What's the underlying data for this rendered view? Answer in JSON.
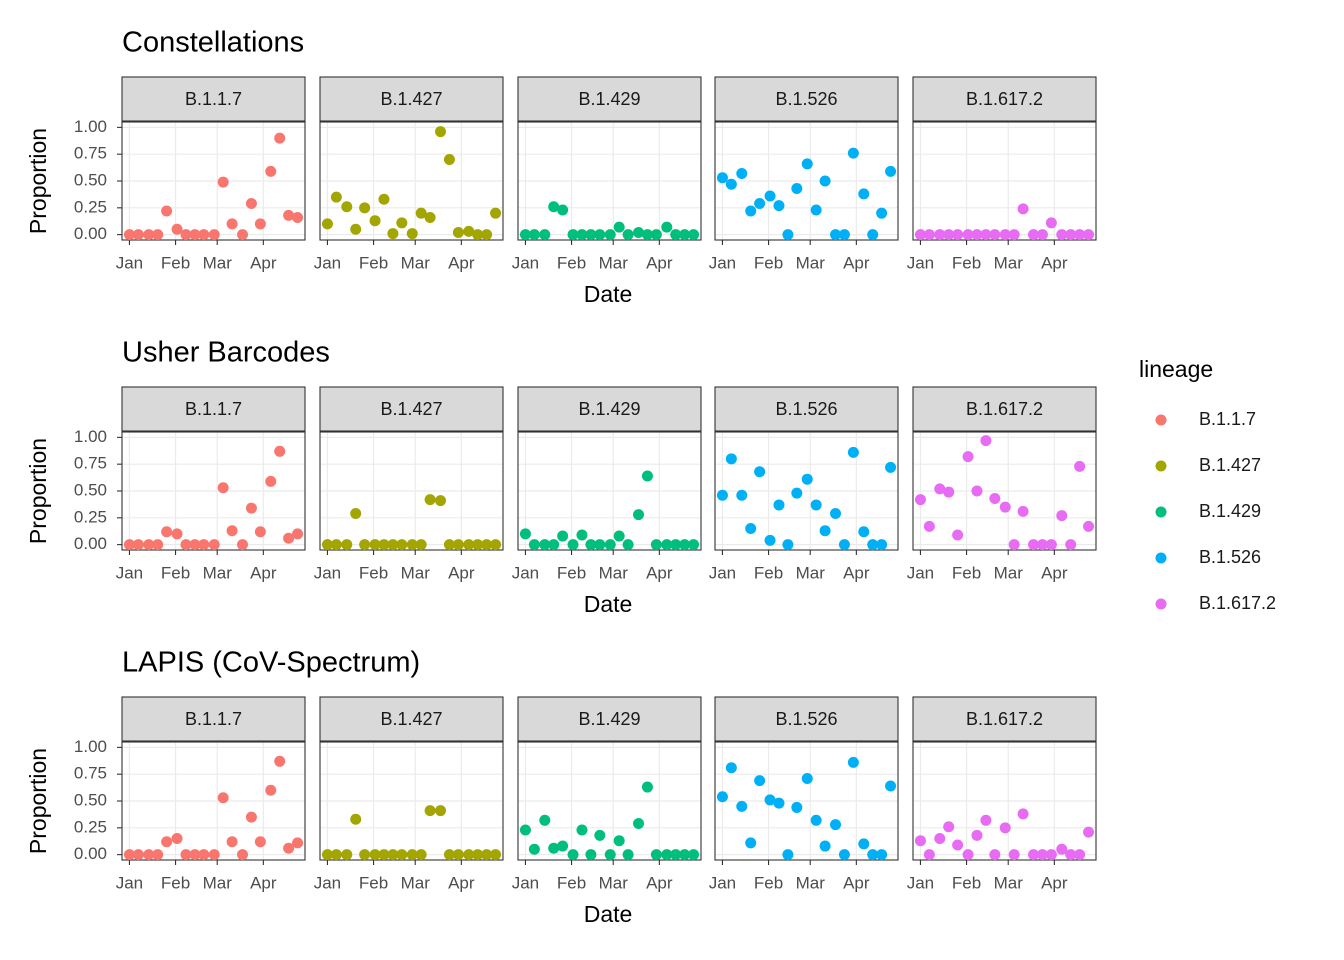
{
  "chart_data": [
    {
      "type": "scatter",
      "title": "Constellations",
      "x_label": "Date",
      "y_label": "Proportion",
      "x": [
        0,
        6,
        13,
        19,
        25,
        32,
        38,
        44,
        50,
        57,
        63,
        69,
        76,
        82,
        88,
        95,
        101,
        107,
        113
      ],
      "xlim": [
        -5,
        118
      ],
      "xticks": [
        {
          "value": 0,
          "label": "Jan"
        },
        {
          "value": 31,
          "label": "Feb"
        },
        {
          "value": 59,
          "label": "Mar"
        },
        {
          "value": 90,
          "label": "Apr"
        }
      ],
      "ylim": [
        -0.05,
        1.05
      ],
      "yticks": [
        {
          "value": 0,
          "label": "0.00"
        },
        {
          "value": 0.25,
          "label": "0.25"
        },
        {
          "value": 0.5,
          "label": "0.50"
        },
        {
          "value": 0.75,
          "label": "0.75"
        },
        {
          "value": 1,
          "label": "1.00"
        }
      ],
      "grid": true,
      "series": [
        {
          "name": "B.1.1.7",
          "color": "#F8766D",
          "values": [
            0,
            0,
            0,
            0,
            0.22,
            0.05,
            0,
            0,
            0,
            0,
            0.49,
            0.1,
            0,
            0.29,
            0.1,
            0.59,
            0.9,
            0.18,
            0.16
          ]
        },
        {
          "name": "B.1.427",
          "color": "#A3A500",
          "values": [
            0.1,
            0.35,
            0.26,
            0.05,
            0.25,
            0.13,
            0.33,
            0.01,
            0.11,
            0.01,
            0.2,
            0.16,
            0.96,
            0.7,
            0.02,
            0.03,
            0,
            0,
            0.2
          ]
        },
        {
          "name": "B.1.429",
          "color": "#00BF7D",
          "values": [
            0,
            0,
            0,
            0.26,
            0.23,
            0,
            0,
            0,
            0,
            0,
            0.07,
            0,
            0.02,
            0,
            0,
            0.07,
            0,
            0,
            0
          ]
        },
        {
          "name": "B.1.526",
          "color": "#00B0F6",
          "values": [
            0.53,
            0.47,
            0.57,
            0.22,
            0.29,
            0.36,
            0.27,
            0,
            0.43,
            0.66,
            0.23,
            0.5,
            0,
            0,
            0.76,
            0.38,
            0,
            0.2,
            0.59
          ]
        },
        {
          "name": "B.1.617.2",
          "color": "#E76BF3",
          "values": [
            0,
            0,
            0,
            0,
            0,
            0,
            0,
            0,
            0,
            0,
            0,
            0.24,
            0,
            0,
            0.11,
            0,
            0,
            0,
            0
          ]
        }
      ]
    },
    {
      "type": "scatter",
      "title": "Usher Barcodes",
      "x_label": "Date",
      "y_label": "Proportion",
      "x": [
        0,
        6,
        13,
        19,
        25,
        32,
        38,
        44,
        50,
        57,
        63,
        69,
        76,
        82,
        88,
        95,
        101,
        107,
        113
      ],
      "xlim": [
        -5,
        118
      ],
      "xticks": [
        {
          "value": 0,
          "label": "Jan"
        },
        {
          "value": 31,
          "label": "Feb"
        },
        {
          "value": 59,
          "label": "Mar"
        },
        {
          "value": 90,
          "label": "Apr"
        }
      ],
      "ylim": [
        -0.05,
        1.05
      ],
      "yticks": [
        {
          "value": 0,
          "label": "0.00"
        },
        {
          "value": 0.25,
          "label": "0.25"
        },
        {
          "value": 0.5,
          "label": "0.50"
        },
        {
          "value": 0.75,
          "label": "0.75"
        },
        {
          "value": 1,
          "label": "1.00"
        }
      ],
      "grid": true,
      "series": [
        {
          "name": "B.1.1.7",
          "color": "#F8766D",
          "values": [
            0,
            0,
            0,
            0,
            0.12,
            0.1,
            0,
            0,
            0,
            0,
            0.53,
            0.13,
            0,
            0.34,
            0.12,
            0.59,
            0.87,
            0.06,
            0.1
          ]
        },
        {
          "name": "B.1.427",
          "color": "#A3A500",
          "values": [
            0,
            0,
            0,
            0.29,
            0,
            0,
            0,
            0,
            0,
            0,
            0,
            0.42,
            0.41,
            0,
            0,
            0,
            0,
            0,
            0
          ]
        },
        {
          "name": "B.1.429",
          "color": "#00BF7D",
          "values": [
            0.1,
            0,
            0,
            0,
            0.08,
            0,
            0.09,
            0,
            0,
            0,
            0.08,
            0,
            0.28,
            0.64,
            0,
            0,
            0,
            0,
            0
          ]
        },
        {
          "name": "B.1.526",
          "color": "#00B0F6",
          "values": [
            0.46,
            0.8,
            0.46,
            0.15,
            0.68,
            0.04,
            0.37,
            0,
            0.48,
            0.61,
            0.37,
            0.13,
            0.29,
            0,
            0.86,
            0.12,
            0,
            0,
            0.72
          ]
        },
        {
          "name": "B.1.617.2",
          "color": "#E76BF3",
          "values": [
            0.42,
            0.17,
            0.52,
            0.49,
            0.09,
            0.82,
            0.5,
            0.97,
            0.43,
            0.35,
            0,
            0.31,
            0,
            0,
            0,
            0.27,
            0,
            0.73,
            0.17
          ]
        }
      ]
    },
    {
      "type": "scatter",
      "title": "LAPIS (CoV-Spectrum)",
      "x_label": "Date",
      "y_label": "Proportion",
      "x": [
        0,
        6,
        13,
        19,
        25,
        32,
        38,
        44,
        50,
        57,
        63,
        69,
        76,
        82,
        88,
        95,
        101,
        107,
        113
      ],
      "xlim": [
        -5,
        118
      ],
      "xticks": [
        {
          "value": 0,
          "label": "Jan"
        },
        {
          "value": 31,
          "label": "Feb"
        },
        {
          "value": 59,
          "label": "Mar"
        },
        {
          "value": 90,
          "label": "Apr"
        }
      ],
      "ylim": [
        -0.05,
        1.05
      ],
      "yticks": [
        {
          "value": 0,
          "label": "0.00"
        },
        {
          "value": 0.25,
          "label": "0.25"
        },
        {
          "value": 0.5,
          "label": "0.50"
        },
        {
          "value": 0.75,
          "label": "0.75"
        },
        {
          "value": 1,
          "label": "1.00"
        }
      ],
      "grid": true,
      "series": [
        {
          "name": "B.1.1.7",
          "color": "#F8766D",
          "values": [
            0,
            0,
            0,
            0,
            0.12,
            0.15,
            0,
            0,
            0,
            0,
            0.53,
            0.12,
            0,
            0.35,
            0.12,
            0.6,
            0.87,
            0.06,
            0.11
          ]
        },
        {
          "name": "B.1.427",
          "color": "#A3A500",
          "values": [
            0,
            0,
            0,
            0.33,
            0,
            0,
            0,
            0,
            0,
            0,
            0,
            0.41,
            0.41,
            0,
            0,
            0,
            0,
            0,
            0
          ]
        },
        {
          "name": "B.1.429",
          "color": "#00BF7D",
          "values": [
            0.23,
            0.05,
            0.32,
            0.06,
            0.08,
            0,
            0.23,
            0,
            0.18,
            0,
            0.13,
            0,
            0.29,
            0.63,
            0,
            0,
            0,
            0,
            0
          ]
        },
        {
          "name": "B.1.526",
          "color": "#00B0F6",
          "values": [
            0.54,
            0.81,
            0.45,
            0.11,
            0.69,
            0.51,
            0.48,
            0,
            0.44,
            0.71,
            0.32,
            0.08,
            0.28,
            0,
            0.86,
            0.1,
            0,
            0,
            0.64
          ]
        },
        {
          "name": "B.1.617.2",
          "color": "#E76BF3",
          "values": [
            0.13,
            0,
            0.15,
            0.26,
            0.09,
            0,
            0.18,
            0.32,
            0,
            0.25,
            0,
            0.38,
            0,
            0,
            0,
            0.05,
            0,
            0,
            0.21
          ]
        }
      ]
    }
  ],
  "legend": {
    "title": "lineage",
    "position": "right"
  }
}
